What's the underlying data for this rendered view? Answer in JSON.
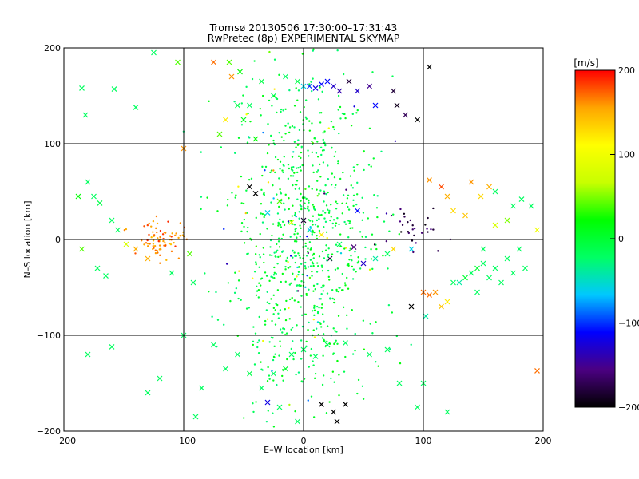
{
  "chart_data": {
    "type": "scatter",
    "title": "Tromsø 20130506 17:30:00–17:31:43",
    "subtitle": "RwPretec (8p) EXPERIMENTAL SKYMAP",
    "xlabel": "E–W location [km]",
    "ylabel": "N–S location [km]",
    "xlim": [
      -200,
      200
    ],
    "ylim": [
      -200,
      200
    ],
    "xticks": [
      "-200",
      "-100",
      "0",
      "100",
      "200"
    ],
    "yticks": [
      "-200",
      "-100",
      "0",
      "100",
      "200"
    ],
    "grid": true,
    "colorbar": {
      "label": "[m/s]",
      "range": [
        -200,
        200
      ],
      "ticks": [
        "200",
        "100",
        "0",
        "-100",
        "-200"
      ],
      "colormap": [
        "#000000",
        "#4b0082",
        "#0000ff",
        "#00c8ff",
        "#00ff64",
        "#00ff00",
        "#c8ff00",
        "#ffff00",
        "#ffa500",
        "#ff0000"
      ]
    },
    "series": [
      {
        "marker": "x",
        "points": [
          [
            -185,
            158,
            -20
          ],
          [
            -182,
            130,
            -20
          ],
          [
            -158,
            157,
            -20
          ],
          [
            -140,
            138,
            -20
          ],
          [
            -125,
            195,
            -20
          ],
          [
            -105,
            185,
            40
          ],
          [
            -100,
            95,
            160
          ],
          [
            -70,
            110,
            40
          ],
          [
            -65,
            125,
            120
          ],
          [
            -55,
            140,
            -10
          ],
          [
            -50,
            125,
            10
          ],
          [
            -40,
            105,
            20
          ],
          [
            -62,
            185,
            40
          ],
          [
            -53,
            175,
            20
          ],
          [
            -35,
            165,
            -10
          ],
          [
            -25,
            150,
            -20
          ],
          [
            -15,
            170,
            -20
          ],
          [
            -5,
            165,
            -10
          ],
          [
            0,
            160,
            -60
          ],
          [
            5,
            160,
            -100
          ],
          [
            10,
            158,
            -120
          ],
          [
            15,
            162,
            -110
          ],
          [
            20,
            165,
            -110
          ],
          [
            25,
            160,
            -130
          ],
          [
            30,
            155,
            -140
          ],
          [
            38,
            165,
            -180
          ],
          [
            45,
            155,
            -130
          ],
          [
            55,
            160,
            -150
          ],
          [
            60,
            140,
            -110
          ],
          [
            75,
            155,
            -180
          ],
          [
            78,
            140,
            -190
          ],
          [
            85,
            130,
            -170
          ],
          [
            95,
            125,
            -200
          ],
          [
            105,
            180,
            -200
          ],
          [
            -75,
            185,
            170
          ],
          [
            -60,
            170,
            160
          ],
          [
            -45,
            140,
            -20
          ],
          [
            -188,
            45,
            20
          ],
          [
            -180,
            60,
            -20
          ],
          [
            -175,
            45,
            -20
          ],
          [
            -170,
            38,
            -10
          ],
          [
            -160,
            20,
            -20
          ],
          [
            -155,
            10,
            -20
          ],
          [
            -148,
            -5,
            80
          ],
          [
            -140,
            -10,
            150
          ],
          [
            -185,
            -10,
            40
          ],
          [
            -172,
            -30,
            -20
          ],
          [
            -165,
            -38,
            -20
          ],
          [
            -130,
            -20,
            150
          ],
          [
            -110,
            -35,
            -20
          ],
          [
            -95,
            -15,
            40
          ],
          [
            -92,
            -45,
            -20
          ],
          [
            -45,
            55,
            -200
          ],
          [
            -40,
            48,
            -200
          ],
          [
            -30,
            28,
            -60
          ],
          [
            -20,
            40,
            40
          ],
          [
            -10,
            18,
            80
          ],
          [
            0,
            20,
            -180
          ],
          [
            5,
            10,
            -60
          ],
          [
            15,
            5,
            120
          ],
          [
            22,
            -20,
            -180
          ],
          [
            30,
            -5,
            -20
          ],
          [
            42,
            -8,
            -160
          ],
          [
            50,
            -25,
            -130
          ],
          [
            60,
            -20,
            -40
          ],
          [
            70,
            -15,
            -20
          ],
          [
            75,
            -10,
            130
          ],
          [
            90,
            -10,
            -60
          ],
          [
            45,
            30,
            -110
          ],
          [
            105,
            62,
            160
          ],
          [
            115,
            55,
            180
          ],
          [
            120,
            45,
            150
          ],
          [
            125,
            30,
            130
          ],
          [
            135,
            25,
            140
          ],
          [
            140,
            60,
            160
          ],
          [
            148,
            45,
            130
          ],
          [
            155,
            55,
            150
          ],
          [
            160,
            50,
            -20
          ],
          [
            175,
            35,
            -20
          ],
          [
            182,
            42,
            -20
          ],
          [
            190,
            35,
            -20
          ],
          [
            195,
            10,
            100
          ],
          [
            150,
            -25,
            -20
          ],
          [
            160,
            -30,
            -20
          ],
          [
            155,
            -40,
            -20
          ],
          [
            165,
            -45,
            -20
          ],
          [
            170,
            -20,
            -20
          ],
          [
            175,
            -35,
            -20
          ],
          [
            180,
            -10,
            -20
          ],
          [
            185,
            -30,
            -20
          ],
          [
            130,
            -45,
            -40
          ],
          [
            140,
            -35,
            -20
          ],
          [
            145,
            -55,
            -20
          ],
          [
            100,
            -55,
            170
          ],
          [
            105,
            -58,
            170
          ],
          [
            110,
            -55,
            160
          ],
          [
            115,
            -70,
            140
          ],
          [
            120,
            -65,
            120
          ],
          [
            90,
            -70,
            -200
          ],
          [
            102,
            -80,
            -40
          ],
          [
            125,
            -45,
            -20
          ],
          [
            135,
            -40,
            0
          ],
          [
            145,
            -30,
            0
          ],
          [
            150,
            -10,
            -20
          ],
          [
            160,
            15,
            80
          ],
          [
            170,
            20,
            50
          ],
          [
            -160,
            -112,
            -20
          ],
          [
            -100,
            -100,
            -20
          ],
          [
            -75,
            -110,
            -20
          ],
          [
            -65,
            -135,
            -20
          ],
          [
            -55,
            -120,
            -20
          ],
          [
            -45,
            -140,
            -10
          ],
          [
            -35,
            -155,
            -20
          ],
          [
            -25,
            -140,
            -20
          ],
          [
            -15,
            -135,
            0
          ],
          [
            -10,
            -120,
            -20
          ],
          [
            0,
            -115,
            -20
          ],
          [
            10,
            -122,
            -20
          ],
          [
            20,
            -110,
            -20
          ],
          [
            35,
            -108,
            -20
          ],
          [
            55,
            -120,
            -20
          ],
          [
            70,
            -115,
            -20
          ],
          [
            -85,
            -155,
            -20
          ],
          [
            -90,
            -185,
            -20
          ],
          [
            -30,
            -170,
            -120
          ],
          [
            -20,
            -175,
            -20
          ],
          [
            -5,
            -190,
            -20
          ],
          [
            15,
            -172,
            -200
          ],
          [
            25,
            -180,
            -200
          ],
          [
            28,
            -190,
            -200
          ],
          [
            35,
            -172,
            -200
          ],
          [
            80,
            -150,
            -20
          ],
          [
            100,
            -150,
            -20
          ],
          [
            95,
            -175,
            -20
          ],
          [
            120,
            -180,
            -20
          ],
          [
            195,
            -137,
            170
          ],
          [
            -130,
            -160,
            -20
          ],
          [
            -120,
            -145,
            -20
          ],
          [
            -180,
            -120,
            -20
          ]
        ]
      },
      {
        "marker": "dot",
        "cluster": "central",
        "center": [
          0,
          0
        ],
        "spread": [
          30,
          90
        ],
        "count": 900
      },
      {
        "marker": "dot",
        "cluster": "west-red",
        "center": [
          -118,
          -2
        ],
        "spread": [
          10,
          10
        ],
        "count": 80,
        "velocity_range": [
          140,
          190
        ]
      },
      {
        "marker": "dot",
        "cluster": "east-dark",
        "center": [
          90,
          10
        ],
        "spread": [
          12,
          10
        ],
        "count": 30,
        "velocity_range": [
          -200,
          -150
        ]
      }
    ]
  }
}
